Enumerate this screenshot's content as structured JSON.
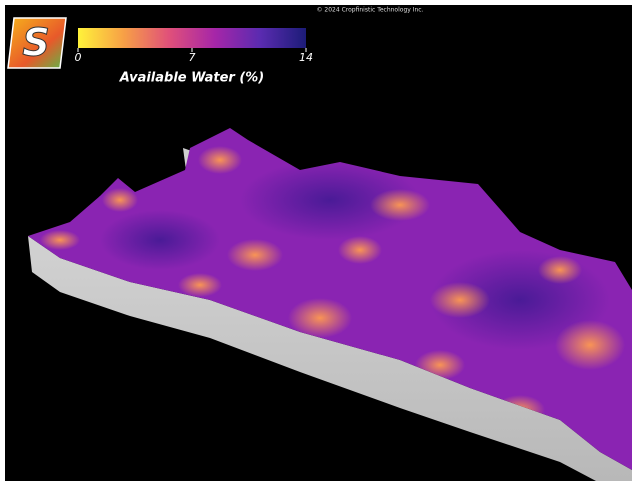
{
  "logo": "S",
  "copyright": "© 2024 Cropfinistic Technology Inc.",
  "legend": {
    "title": "Available Water (%)",
    "range": [
      0,
      14
    ],
    "ticks": [
      0,
      7,
      14
    ],
    "colors": [
      "#fff23a",
      "#f7a046",
      "#e0507a",
      "#a626a8",
      "#5a2bb0",
      "#1c1c78"
    ]
  }
}
